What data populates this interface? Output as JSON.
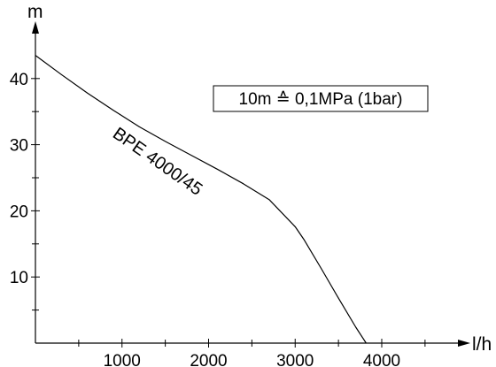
{
  "chart_data": {
    "type": "line",
    "ylabel": "m",
    "xlabel": "l/h",
    "xlim": [
      0,
      4700
    ],
    "ylim": [
      0,
      46
    ],
    "x_ticks": [
      1000,
      2000,
      3000,
      4000
    ],
    "x_minor_ticks": [
      500,
      1500,
      2500,
      3500,
      4500
    ],
    "y_ticks": [
      10,
      20,
      30,
      40
    ],
    "y_minor_ticks": [
      5,
      15,
      25,
      35
    ],
    "grid": false,
    "series": [
      {
        "name": "BPE 4000/45",
        "x": [
          0,
          300,
          600,
          900,
          1200,
          1500,
          1800,
          2100,
          2400,
          2700,
          3000,
          3100,
          3300,
          3500,
          3700,
          3820
        ],
        "y": [
          43.5,
          40.6,
          37.8,
          35.2,
          32.7,
          30.5,
          28.4,
          26.3,
          24.1,
          21.7,
          17.6,
          15.7,
          11.3,
          6.8,
          2.4,
          0
        ]
      }
    ],
    "annotation": "10m ≙ 0,1MPa (1bar)"
  }
}
